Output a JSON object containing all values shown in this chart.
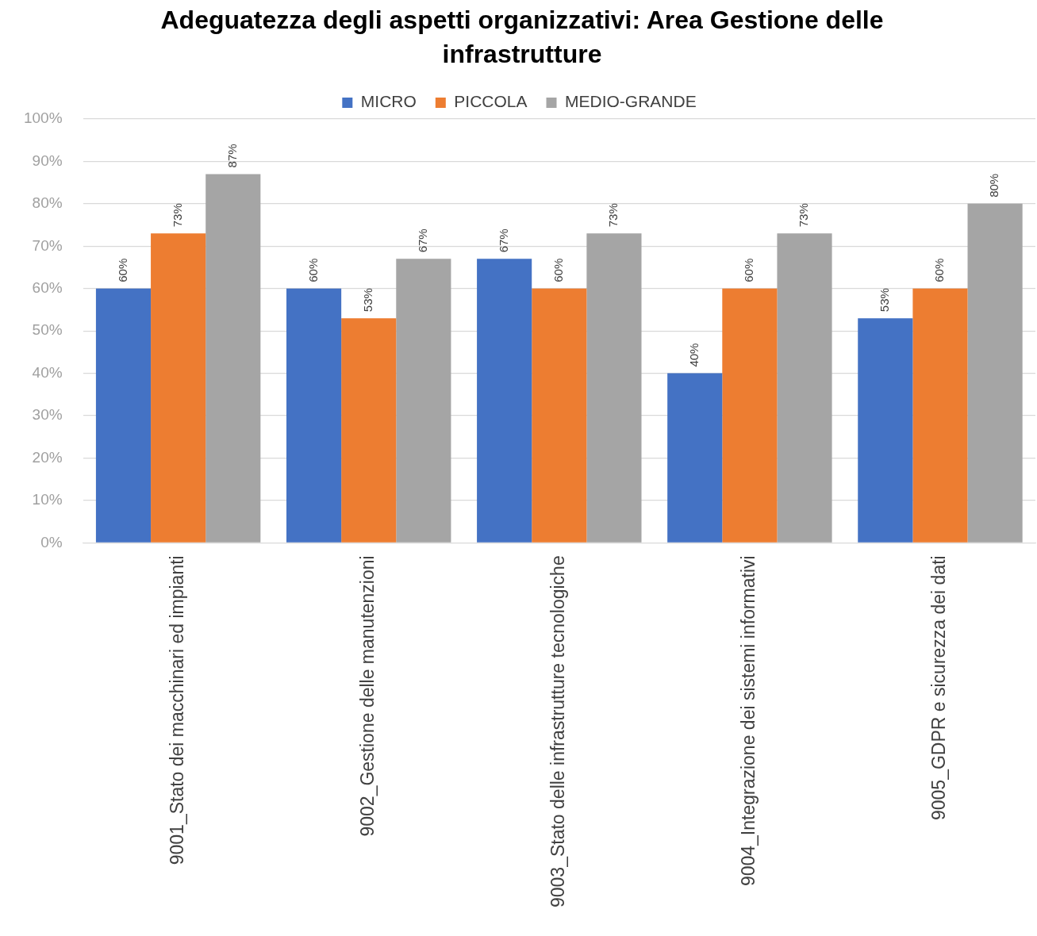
{
  "chart_data": {
    "type": "bar",
    "title": "Adeguatezza degli aspetti organizzativi: Area Gestione delle infrastrutture",
    "categories": [
      "9001_Stato dei macchinari ed impianti",
      "9002_Gestione delle manutenzioni",
      "9003_Stato delle infrastrutture tecnologiche",
      "9004_Integrazione dei sistemi informativi",
      "9005_GDPR e sicurezza dei dati"
    ],
    "series": [
      {
        "name": "MICRO",
        "color": "#4472c4",
        "values": [
          60,
          60,
          67,
          40,
          53
        ],
        "value_labels": [
          "60%",
          "60%",
          "67%",
          "40%",
          "53%"
        ]
      },
      {
        "name": "PICCOLA",
        "color": "#ed7d31",
        "values": [
          73,
          53,
          60,
          60,
          60
        ],
        "value_labels": [
          "73%",
          "53%",
          "60%",
          "60%",
          "60%"
        ]
      },
      {
        "name": "MEDIO-GRANDE",
        "color": "#a5a5a5",
        "values": [
          87,
          67,
          73,
          73,
          80
        ],
        "value_labels": [
          "87%",
          "67%",
          "73%",
          "73%",
          "80%"
        ]
      }
    ],
    "ylim": [
      0,
      100
    ],
    "yticks": [
      {
        "value": 0,
        "label": "0%"
      },
      {
        "value": 10,
        "label": "10%"
      },
      {
        "value": 20,
        "label": "20%"
      },
      {
        "value": 30,
        "label": "30%"
      },
      {
        "value": 40,
        "label": "40%"
      },
      {
        "value": 50,
        "label": "50%"
      },
      {
        "value": 60,
        "label": "60%"
      },
      {
        "value": 70,
        "label": "70%"
      },
      {
        "value": 80,
        "label": "80%"
      },
      {
        "value": 90,
        "label": "90%"
      },
      {
        "value": 100,
        "label": "100%"
      }
    ],
    "grid": "y",
    "legend": "top"
  }
}
